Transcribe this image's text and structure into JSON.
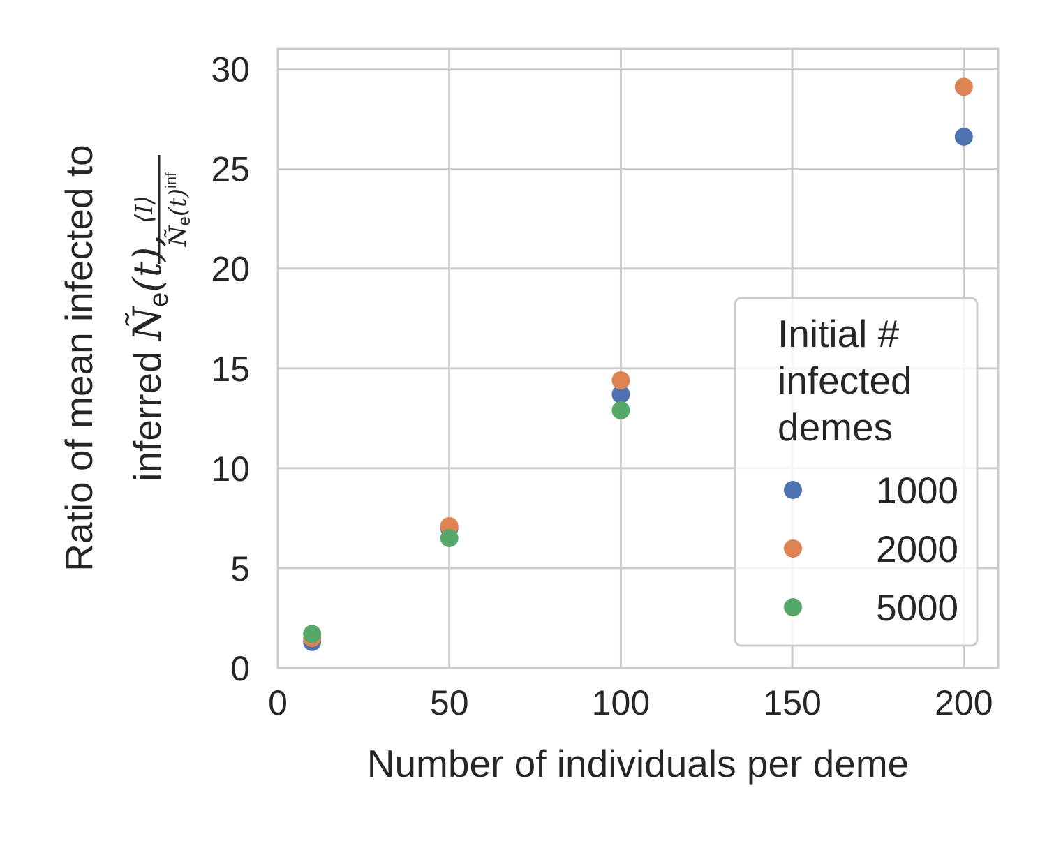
{
  "chart_data": {
    "type": "scatter",
    "xlabel": "Number of individuals per deme",
    "ylabel_line1": "Ratio of mean infected to",
    "ylabel_line2_prefix": "inferred ",
    "ylabel_symbol": "Ñ",
    "ylabel_symbol_sub": "e",
    "ylabel_symbol_arg": "(t),",
    "ylabel_frac_num": "⟨I⟩",
    "ylabel_frac_den_symbol": "Ñ",
    "ylabel_frac_den_sub": "e",
    "ylabel_frac_den_arg": "(t)",
    "ylabel_frac_den_sup": "inf",
    "xlim": [
      0,
      210
    ],
    "ylim": [
      0,
      31
    ],
    "x_ticks": [
      0,
      50,
      100,
      150,
      200
    ],
    "y_ticks": [
      0,
      5,
      10,
      15,
      20,
      25,
      30
    ],
    "x_tick_labels": [
      "0",
      "50",
      "100",
      "150",
      "200"
    ],
    "y_tick_labels": [
      "0",
      "5",
      "10",
      "15",
      "20",
      "25",
      "30"
    ],
    "grid": true,
    "legend": {
      "title_lines": [
        "Initial #",
        "infected",
        "demes"
      ],
      "placement": "lower-right"
    },
    "series": [
      {
        "name": "1000",
        "color": "#4c72b0",
        "x": [
          10,
          50,
          100,
          200
        ],
        "y": [
          1.3,
          7.0,
          13.7,
          26.6
        ]
      },
      {
        "name": "2000",
        "color": "#dd8452",
        "x": [
          10,
          50,
          100,
          200
        ],
        "y": [
          1.5,
          7.1,
          14.4,
          29.1
        ]
      },
      {
        "name": "5000",
        "color": "#55a868",
        "x": [
          10,
          50,
          100
        ],
        "y": [
          1.7,
          6.5,
          12.9
        ]
      }
    ]
  }
}
